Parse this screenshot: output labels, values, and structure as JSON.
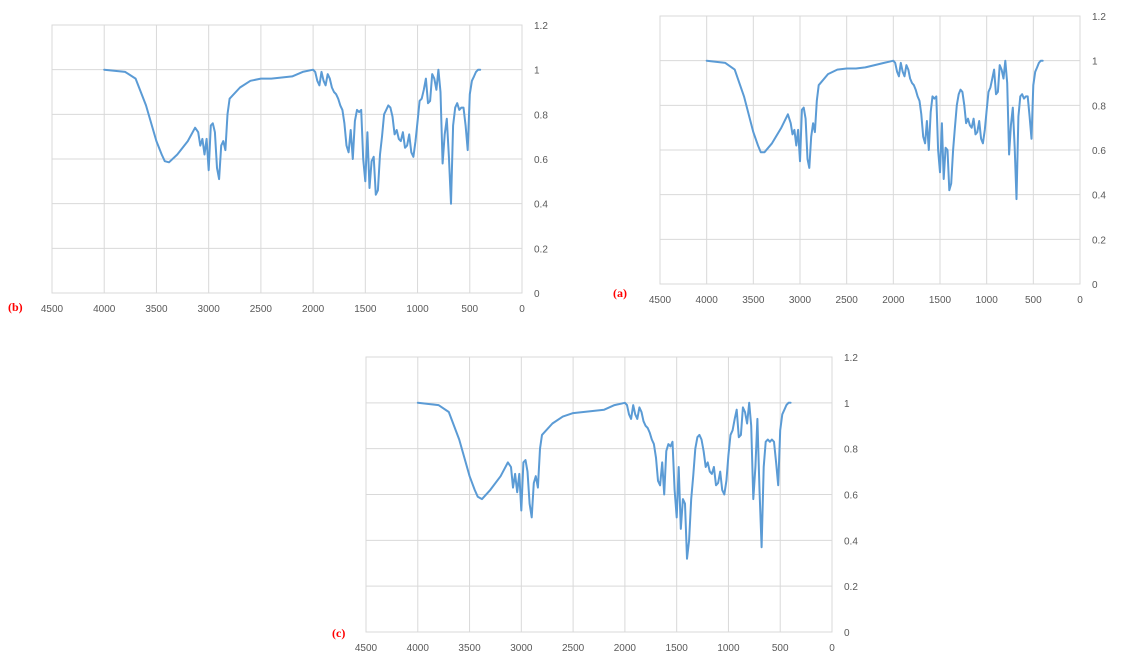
{
  "chart_data": [
    {
      "panel_label": "(b)",
      "type": "line",
      "x_reversed": true,
      "xlim": [
        4500,
        0
      ],
      "ylim": [
        0,
        1.2
      ],
      "x_ticks": [
        "4500",
        "4000",
        "3500",
        "3000",
        "2500",
        "2000",
        "1500",
        "1000",
        "500",
        "0"
      ],
      "y_ticks": [
        "0",
        "0.2",
        "0.4",
        "0.6",
        "0.8",
        "1",
        "1.2"
      ],
      "grid": true,
      "legend": "none",
      "line_color": "#5B9BD5",
      "series": [
        {
          "x": [
            4000,
            3800,
            3700,
            3600,
            3500,
            3450,
            3420,
            3380,
            3300,
            3200,
            3130,
            3100,
            3080,
            3060,
            3040,
            3020,
            3000,
            2980,
            2960,
            2940,
            2920,
            2900,
            2880,
            2860,
            2840,
            2820,
            2800,
            2700,
            2600,
            2500,
            2400,
            2300,
            2200,
            2100,
            2000,
            1980,
            1960,
            1940,
            1920,
            1900,
            1880,
            1860,
            1840,
            1820,
            1800,
            1780,
            1760,
            1740,
            1720,
            1700,
            1680,
            1660,
            1640,
            1620,
            1600,
            1580,
            1560,
            1540,
            1520,
            1500,
            1480,
            1460,
            1440,
            1420,
            1400,
            1380,
            1360,
            1340,
            1320,
            1300,
            1280,
            1260,
            1240,
            1220,
            1200,
            1180,
            1160,
            1140,
            1120,
            1100,
            1080,
            1060,
            1040,
            1020,
            1000,
            980,
            960,
            940,
            920,
            900,
            880,
            860,
            840,
            820,
            800,
            780,
            760,
            740,
            720,
            700,
            680,
            660,
            640,
            620,
            600,
            580,
            560,
            540,
            520,
            500,
            480,
            460,
            440,
            420,
            400
          ],
          "y": [
            1.0,
            0.99,
            0.96,
            0.84,
            0.68,
            0.62,
            0.59,
            0.585,
            0.62,
            0.68,
            0.74,
            0.72,
            0.66,
            0.69,
            0.62,
            0.69,
            0.55,
            0.75,
            0.76,
            0.72,
            0.56,
            0.51,
            0.66,
            0.68,
            0.64,
            0.8,
            0.87,
            0.92,
            0.95,
            0.96,
            0.96,
            0.965,
            0.97,
            0.99,
            1.0,
            0.99,
            0.95,
            0.93,
            0.99,
            0.95,
            0.93,
            0.98,
            0.96,
            0.92,
            0.9,
            0.89,
            0.87,
            0.84,
            0.82,
            0.76,
            0.66,
            0.63,
            0.73,
            0.6,
            0.77,
            0.82,
            0.81,
            0.82,
            0.6,
            0.5,
            0.72,
            0.47,
            0.59,
            0.61,
            0.44,
            0.46,
            0.62,
            0.7,
            0.8,
            0.82,
            0.84,
            0.83,
            0.79,
            0.71,
            0.73,
            0.69,
            0.68,
            0.72,
            0.65,
            0.66,
            0.71,
            0.63,
            0.61,
            0.68,
            0.77,
            0.86,
            0.87,
            0.91,
            0.96,
            0.85,
            0.86,
            0.98,
            0.96,
            0.91,
            1.0,
            0.9,
            0.58,
            0.71,
            0.78,
            0.61,
            0.4,
            0.75,
            0.83,
            0.85,
            0.82,
            0.83,
            0.83,
            0.75,
            0.64,
            0.89,
            0.95,
            0.97,
            0.99,
            1.0,
            1.0
          ]
        }
      ]
    },
    {
      "panel_label": "(a)",
      "type": "line",
      "x_reversed": true,
      "xlim": [
        4500,
        0
      ],
      "ylim": [
        0,
        1.2
      ],
      "x_ticks": [
        "4500",
        "4000",
        "3500",
        "3000",
        "2500",
        "2000",
        "1500",
        "1000",
        "500",
        "0"
      ],
      "y_ticks": [
        "0",
        "0.2",
        "0.4",
        "0.6",
        "0.8",
        "1",
        "1.2"
      ],
      "grid": true,
      "legend": "none",
      "line_color": "#5B9BD5",
      "series": [
        {
          "x": [
            4000,
            3800,
            3700,
            3600,
            3500,
            3450,
            3420,
            3380,
            3300,
            3200,
            3130,
            3100,
            3080,
            3060,
            3040,
            3020,
            3000,
            2980,
            2960,
            2940,
            2920,
            2900,
            2880,
            2860,
            2840,
            2820,
            2800,
            2700,
            2600,
            2500,
            2400,
            2300,
            2200,
            2100,
            2000,
            1980,
            1960,
            1940,
            1920,
            1900,
            1880,
            1860,
            1840,
            1820,
            1800,
            1780,
            1760,
            1740,
            1720,
            1700,
            1680,
            1660,
            1640,
            1620,
            1600,
            1580,
            1560,
            1540,
            1520,
            1500,
            1480,
            1460,
            1440,
            1420,
            1400,
            1380,
            1360,
            1340,
            1320,
            1300,
            1280,
            1260,
            1240,
            1220,
            1200,
            1180,
            1160,
            1140,
            1120,
            1100,
            1080,
            1060,
            1040,
            1020,
            1000,
            980,
            960,
            940,
            920,
            900,
            880,
            860,
            840,
            820,
            800,
            780,
            760,
            740,
            720,
            700,
            680,
            660,
            640,
            620,
            600,
            580,
            560,
            540,
            520,
            500,
            480,
            460,
            440,
            420,
            400
          ],
          "y": [
            1.0,
            0.99,
            0.96,
            0.84,
            0.68,
            0.62,
            0.59,
            0.59,
            0.63,
            0.7,
            0.76,
            0.72,
            0.67,
            0.69,
            0.62,
            0.69,
            0.55,
            0.78,
            0.79,
            0.74,
            0.56,
            0.52,
            0.66,
            0.72,
            0.68,
            0.82,
            0.89,
            0.94,
            0.96,
            0.965,
            0.965,
            0.97,
            0.98,
            0.99,
            1.0,
            0.99,
            0.95,
            0.93,
            0.99,
            0.95,
            0.93,
            0.98,
            0.96,
            0.92,
            0.9,
            0.89,
            0.87,
            0.84,
            0.82,
            0.76,
            0.66,
            0.63,
            0.73,
            0.6,
            0.77,
            0.84,
            0.83,
            0.84,
            0.6,
            0.5,
            0.72,
            0.47,
            0.61,
            0.6,
            0.42,
            0.45,
            0.6,
            0.7,
            0.8,
            0.85,
            0.87,
            0.86,
            0.8,
            0.72,
            0.74,
            0.71,
            0.7,
            0.74,
            0.67,
            0.68,
            0.73,
            0.65,
            0.63,
            0.69,
            0.78,
            0.86,
            0.88,
            0.92,
            0.96,
            0.85,
            0.86,
            0.98,
            0.96,
            0.92,
            1.0,
            0.9,
            0.58,
            0.71,
            0.79,
            0.61,
            0.38,
            0.75,
            0.84,
            0.85,
            0.83,
            0.84,
            0.84,
            0.75,
            0.65,
            0.89,
            0.95,
            0.97,
            0.99,
            1.0,
            1.0
          ]
        }
      ]
    },
    {
      "panel_label": "(c)",
      "type": "line",
      "x_reversed": true,
      "xlim": [
        4500,
        0
      ],
      "ylim": [
        0,
        1.2
      ],
      "x_ticks": [
        "4500",
        "4000",
        "3500",
        "3000",
        "2500",
        "2000",
        "1500",
        "1000",
        "500",
        "0"
      ],
      "y_ticks": [
        "0",
        "0.2",
        "0.4",
        "0.6",
        "0.8",
        "1",
        "1.2"
      ],
      "grid": true,
      "legend": "none",
      "line_color": "#5B9BD5",
      "series": [
        {
          "x": [
            4000,
            3800,
            3700,
            3600,
            3500,
            3450,
            3420,
            3380,
            3300,
            3200,
            3130,
            3100,
            3080,
            3060,
            3040,
            3020,
            3000,
            2980,
            2960,
            2940,
            2920,
            2900,
            2880,
            2860,
            2840,
            2820,
            2800,
            2700,
            2600,
            2500,
            2400,
            2300,
            2200,
            2100,
            2000,
            1980,
            1960,
            1940,
            1920,
            1900,
            1880,
            1860,
            1840,
            1820,
            1800,
            1780,
            1760,
            1740,
            1720,
            1700,
            1680,
            1660,
            1640,
            1620,
            1600,
            1580,
            1560,
            1540,
            1520,
            1500,
            1480,
            1460,
            1440,
            1420,
            1400,
            1380,
            1360,
            1340,
            1320,
            1300,
            1280,
            1260,
            1240,
            1220,
            1200,
            1180,
            1160,
            1140,
            1120,
            1100,
            1080,
            1060,
            1040,
            1020,
            1000,
            980,
            960,
            940,
            920,
            900,
            880,
            860,
            840,
            820,
            800,
            780,
            760,
            740,
            720,
            700,
            680,
            660,
            640,
            620,
            600,
            580,
            560,
            540,
            520,
            500,
            480,
            460,
            440,
            420,
            400
          ],
          "y": [
            1.0,
            0.99,
            0.96,
            0.84,
            0.68,
            0.62,
            0.59,
            0.58,
            0.62,
            0.68,
            0.74,
            0.72,
            0.63,
            0.69,
            0.61,
            0.69,
            0.53,
            0.74,
            0.75,
            0.7,
            0.56,
            0.5,
            0.65,
            0.68,
            0.63,
            0.8,
            0.86,
            0.91,
            0.94,
            0.955,
            0.96,
            0.965,
            0.97,
            0.99,
            1.0,
            0.99,
            0.95,
            0.93,
            0.99,
            0.95,
            0.93,
            0.98,
            0.96,
            0.92,
            0.9,
            0.89,
            0.87,
            0.84,
            0.82,
            0.76,
            0.66,
            0.64,
            0.74,
            0.6,
            0.79,
            0.82,
            0.81,
            0.83,
            0.62,
            0.5,
            0.72,
            0.45,
            0.58,
            0.56,
            0.32,
            0.4,
            0.58,
            0.68,
            0.8,
            0.85,
            0.86,
            0.84,
            0.79,
            0.72,
            0.74,
            0.7,
            0.69,
            0.72,
            0.64,
            0.65,
            0.7,
            0.62,
            0.6,
            0.66,
            0.77,
            0.86,
            0.88,
            0.93,
            0.97,
            0.85,
            0.86,
            0.98,
            0.96,
            0.91,
            1.0,
            0.9,
            0.58,
            0.72,
            0.93,
            0.62,
            0.37,
            0.72,
            0.83,
            0.84,
            0.83,
            0.84,
            0.83,
            0.74,
            0.64,
            0.88,
            0.95,
            0.97,
            0.99,
            1.0,
            1.0
          ]
        }
      ]
    }
  ]
}
